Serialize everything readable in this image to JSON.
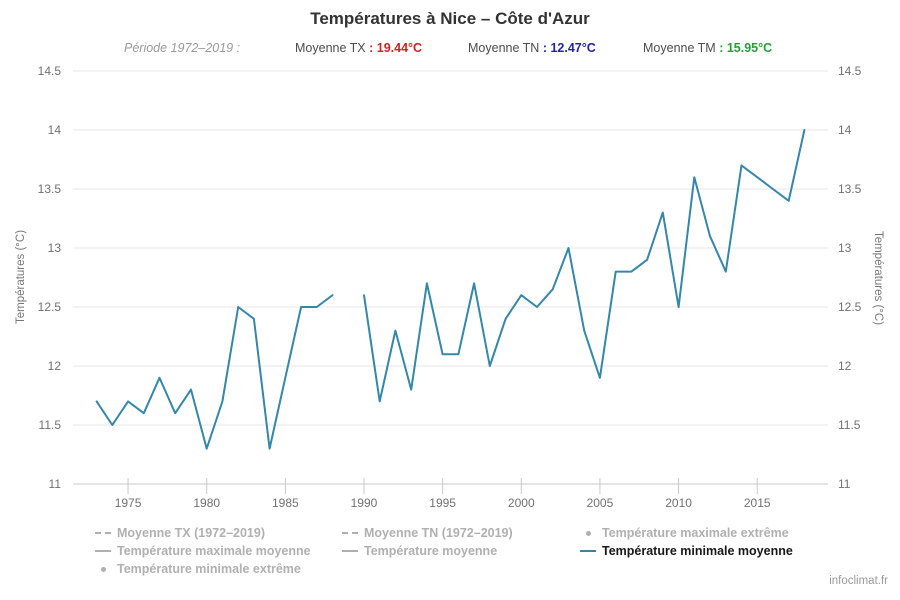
{
  "title": "Températures à Nice – Côte d'Azur",
  "subtitle": {
    "periode": "Période 1972–2019 :",
    "sep": " : ",
    "stats": [
      {
        "label": "Moyenne TX",
        "value": "19.44°C",
        "color": "#cc2222"
      },
      {
        "label": "Moyenne TN",
        "value": "12.47°C",
        "color": "#2222aa"
      },
      {
        "label": "Moyenne TM",
        "value": "15.95°C",
        "color": "#22a033"
      }
    ]
  },
  "chart_data": {
    "type": "line",
    "title": "Températures à Nice – Côte d'Azur",
    "ylabel_left": "Températures (°C)",
    "ylabel_right": "Températures (°C)",
    "ylim": [
      11,
      14.5
    ],
    "ytick_labels": [
      "14.5",
      "14",
      "13.5",
      "13",
      "12.5",
      "12",
      "11.5",
      "11"
    ],
    "yticks": [
      14.5,
      14,
      13.5,
      13,
      12.5,
      12,
      11.5,
      11
    ],
    "xlim": [
      1971.5,
      2019.5
    ],
    "xticks": [
      1975,
      1980,
      1985,
      1990,
      1995,
      2000,
      2005,
      2010,
      2015
    ],
    "xtick_labels": [
      "1975",
      "1980",
      "1985",
      "1990",
      "1995",
      "2000",
      "2005",
      "2010",
      "2015"
    ],
    "grid": true,
    "colors": {
      "line": "#3487a8",
      "grid": "#e7e7e7",
      "axis": "#c8c8c8",
      "tick_text": "#707070"
    },
    "series": [
      {
        "name": "Température minimale moyenne",
        "color": "#3487a8",
        "points": [
          [
            1973,
            11.7
          ],
          [
            1974,
            11.5
          ],
          [
            1975,
            11.7
          ],
          [
            1976,
            11.6
          ],
          [
            1977,
            11.9
          ],
          [
            1978,
            11.6
          ],
          [
            1979,
            11.8
          ],
          [
            1980,
            11.3
          ],
          [
            1981,
            11.7
          ],
          [
            1982,
            12.5
          ],
          [
            1983,
            12.4
          ],
          [
            1984,
            11.3
          ],
          [
            1985,
            11.9
          ],
          [
            1986,
            12.5
          ],
          [
            1987,
            12.5
          ],
          [
            1988,
            12.6
          ],
          [
            1989,
            null
          ],
          [
            1990,
            12.6
          ],
          [
            1991,
            11.7
          ],
          [
            1992,
            12.3
          ],
          [
            1993,
            11.8
          ],
          [
            1994,
            12.7
          ],
          [
            1995,
            12.1
          ],
          [
            1996,
            12.1
          ],
          [
            1997,
            12.7
          ],
          [
            1998,
            12.0
          ],
          [
            1999,
            12.4
          ],
          [
            2000,
            12.6
          ],
          [
            2001,
            12.5
          ],
          [
            2002,
            12.65
          ],
          [
            2003,
            13.0
          ],
          [
            2004,
            12.3
          ],
          [
            2005,
            11.9
          ],
          [
            2006,
            12.8
          ],
          [
            2007,
            12.8
          ],
          [
            2008,
            12.9
          ],
          [
            2009,
            13.3
          ],
          [
            2010,
            12.5
          ],
          [
            2011,
            13.6
          ],
          [
            2012,
            13.1
          ],
          [
            2013,
            12.8
          ],
          [
            2014,
            13.7
          ],
          [
            2015,
            13.6
          ],
          [
            2016,
            13.5
          ],
          [
            2017,
            13.4
          ],
          [
            2018,
            14.0
          ]
        ]
      }
    ],
    "legend_position": "bottom"
  },
  "legend": {
    "items": [
      {
        "label": "Moyenne TX (1972–2019)",
        "symbol": "dash",
        "active": false
      },
      {
        "label": "Moyenne TN (1972–2019)",
        "symbol": "dash",
        "active": false
      },
      {
        "label": "Température maximale extrême",
        "symbol": "dot",
        "active": false
      },
      {
        "label": "Température maximale moyenne",
        "symbol": "line",
        "active": false
      },
      {
        "label": "Température moyenne",
        "symbol": "line",
        "active": false
      },
      {
        "label": "Température minimale moyenne",
        "symbol": "line",
        "active": true
      },
      {
        "label": "Température minimale extrême",
        "symbol": "dot",
        "active": false
      }
    ]
  },
  "footer": "infoclimat.fr"
}
